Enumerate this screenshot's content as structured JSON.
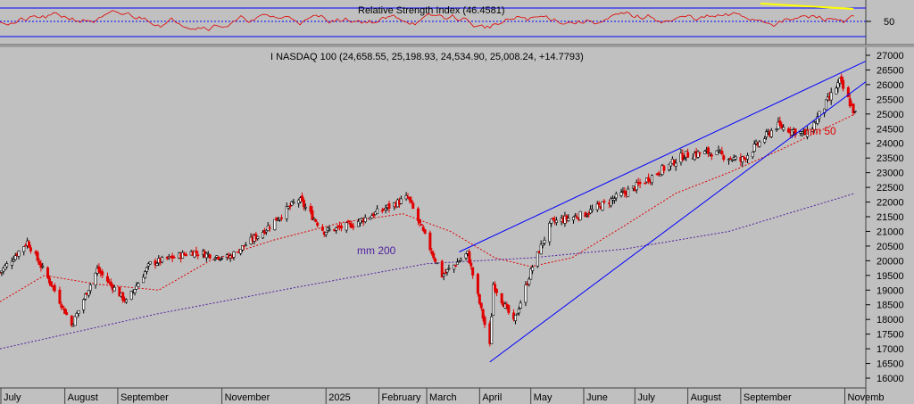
{
  "rsi": {
    "label": "Relative Strength Index (46.4581)",
    "axis_value": "50",
    "line_color": "#e00000",
    "trend_color": "#ffff00"
  },
  "main": {
    "title": "I NASDAQ 100 (24,658.55, 25,198.93, 24,534.90, 25,008.24, +14.7793)",
    "ma50_label": "mm 50",
    "ma200_label": "mm 200",
    "ma50_color": "#e00000",
    "ma200_color": "#5020a0",
    "trendline_color": "#0000ff",
    "up_color": "#000000",
    "down_color": "#e00000"
  },
  "chart_data": {
    "type": "candlestick",
    "title": "I NASDAQ 100 (24,658.55, 25,198.93, 24,534.90, 25,008.24, +14.7793)",
    "ylim": [
      16000,
      27000
    ],
    "y_ticks": [
      16000,
      16500,
      17000,
      17500,
      18000,
      18500,
      19000,
      19500,
      20000,
      20500,
      21000,
      21500,
      22000,
      22500,
      23000,
      23500,
      24000,
      24500,
      25000,
      25500,
      26000,
      26500,
      27000
    ],
    "x_tick_labels": [
      "July",
      "August",
      "September",
      "November",
      "2025",
      "February",
      "March",
      "April",
      "May",
      "June",
      "July",
      "August",
      "September",
      "Novemb"
    ],
    "last": {
      "open": 24658.55,
      "high": 25198.93,
      "low": 24534.9,
      "close": 25008.24,
      "change": 14.7793
    },
    "price_path": [
      {
        "date": "2024-06-24",
        "close": 19600
      },
      {
        "date": "2024-07-10",
        "close": 20650
      },
      {
        "date": "2024-07-25",
        "close": 19100
      },
      {
        "date": "2024-08-05",
        "close": 17800
      },
      {
        "date": "2024-08-20",
        "close": 19700
      },
      {
        "date": "2024-09-06",
        "close": 18600
      },
      {
        "date": "2024-09-20",
        "close": 19900
      },
      {
        "date": "2024-10-15",
        "close": 20300
      },
      {
        "date": "2024-11-05",
        "close": 20100
      },
      {
        "date": "2024-11-25",
        "close": 21000
      },
      {
        "date": "2024-12-16",
        "close": 22100
      },
      {
        "date": "2024-12-31",
        "close": 21000
      },
      {
        "date": "2025-01-15",
        "close": 21200
      },
      {
        "date": "2025-02-18",
        "close": 22150
      },
      {
        "date": "2025-03-10",
        "close": 19500
      },
      {
        "date": "2025-03-25",
        "close": 20250
      },
      {
        "date": "2025-04-07",
        "close": 17100
      },
      {
        "date": "2025-04-09",
        "close": 19200
      },
      {
        "date": "2025-04-21",
        "close": 17900
      },
      {
        "date": "2025-05-02",
        "close": 19800
      },
      {
        "date": "2025-05-13",
        "close": 21300
      },
      {
        "date": "2025-06-02",
        "close": 21600
      },
      {
        "date": "2025-07-01",
        "close": 22500
      },
      {
        "date": "2025-07-30",
        "close": 23600
      },
      {
        "date": "2025-08-15",
        "close": 23700
      },
      {
        "date": "2025-09-01",
        "close": 23400
      },
      {
        "date": "2025-09-22",
        "close": 24600
      },
      {
        "date": "2025-10-10",
        "close": 24300
      },
      {
        "date": "2025-10-29",
        "close": 26100
      },
      {
        "date": "2025-11-07",
        "close": 25008
      }
    ],
    "series": [
      {
        "name": "mm 50",
        "values": [
          {
            "date": "2024-06-24",
            "value": 18600
          },
          {
            "date": "2024-07-20",
            "value": 19500
          },
          {
            "date": "2024-08-20",
            "value": 19200
          },
          {
            "date": "2024-09-25",
            "value": 19000
          },
          {
            "date": "2024-10-25",
            "value": 20000
          },
          {
            "date": "2024-12-01",
            "value": 20700
          },
          {
            "date": "2025-01-10",
            "value": 21300
          },
          {
            "date": "2025-02-15",
            "value": 21600
          },
          {
            "date": "2025-03-15",
            "value": 21000
          },
          {
            "date": "2025-04-10",
            "value": 20100
          },
          {
            "date": "2025-05-01",
            "value": 19800
          },
          {
            "date": "2025-05-25",
            "value": 20100
          },
          {
            "date": "2025-06-25",
            "value": 21200
          },
          {
            "date": "2025-07-25",
            "value": 22300
          },
          {
            "date": "2025-08-25",
            "value": 23000
          },
          {
            "date": "2025-09-25",
            "value": 23800
          },
          {
            "date": "2025-11-07",
            "value": 25000
          }
        ]
      },
      {
        "name": "mm 200",
        "values": [
          {
            "date": "2024-06-24",
            "value": 17000
          },
          {
            "date": "2024-09-25",
            "value": 18200
          },
          {
            "date": "2024-12-15",
            "value": 19100
          },
          {
            "date": "2025-03-01",
            "value": 19900
          },
          {
            "date": "2025-05-01",
            "value": 20100
          },
          {
            "date": "2025-06-25",
            "value": 20400
          },
          {
            "date": "2025-08-25",
            "value": 21000
          },
          {
            "date": "2025-11-07",
            "value": 22300
          }
        ]
      }
    ],
    "trendlines": [
      {
        "from": {
          "date": "2025-03-20",
          "value": 20300
        },
        "to": {
          "date": "2025-11-07",
          "value": 26800
        }
      },
      {
        "from": {
          "date": "2025-04-07",
          "value": 16550
        },
        "to": {
          "date": "2025-11-07",
          "value": 26100
        }
      }
    ],
    "rsi": {
      "value": 46.4581,
      "reference_levels": [
        30,
        50,
        70
      ]
    }
  }
}
